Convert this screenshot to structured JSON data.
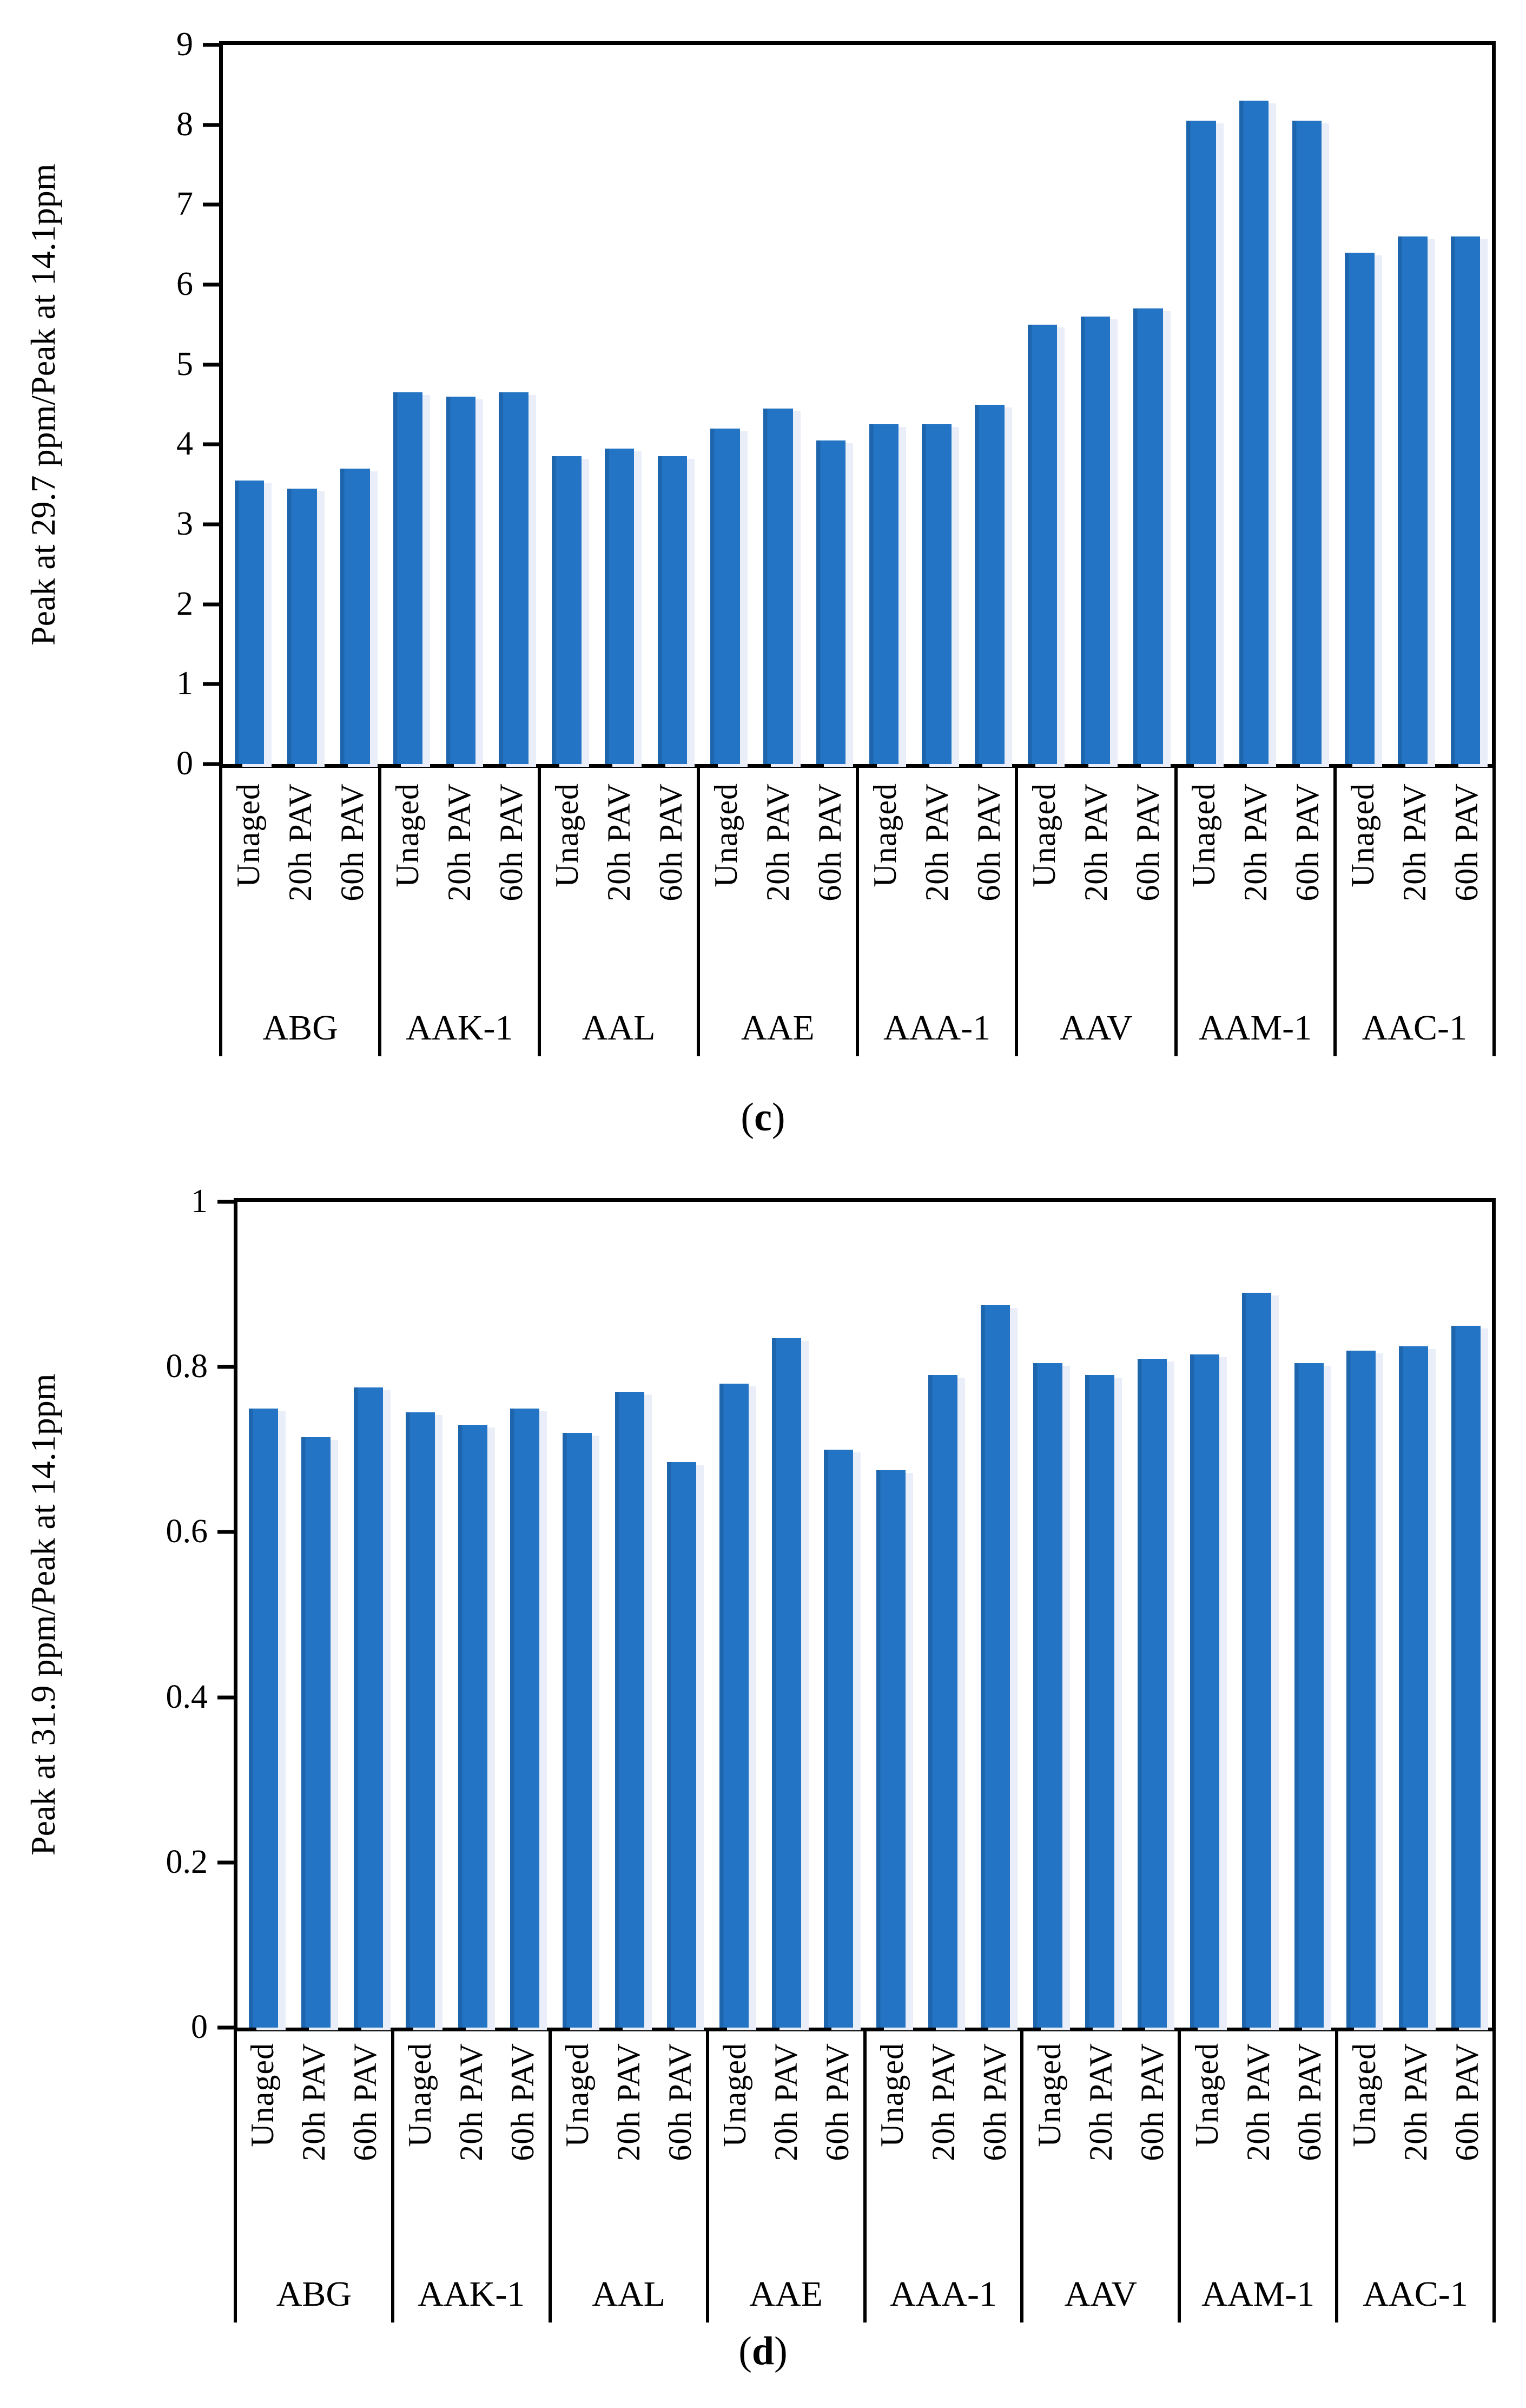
{
  "figure": {
    "background": "#ffffff",
    "bar_color": "#2374c4",
    "bar_edge_color": "#1d65ad",
    "bar_highlight_color": "#e9eef8",
    "axis_color": "#000000"
  },
  "chart_data": [
    {
      "type": "bar",
      "panel": "c",
      "title": "",
      "xlabel": "",
      "ylabel": "Peak at 29.7 ppm/Peak at 14.1ppm",
      "caption": {
        "open": "(",
        "letter": "c",
        "close": ")"
      },
      "ylim": [
        0,
        9
      ],
      "yticks": [
        9,
        8,
        7,
        6,
        5,
        4,
        3,
        2,
        1,
        0
      ],
      "ytick_labels": [
        "9",
        "8",
        "7",
        "6",
        "5",
        "4",
        "3",
        "2",
        "1",
        "0"
      ],
      "grid": "off",
      "legend": "none",
      "categories": [
        "ABG",
        "AAK-1",
        "AAL",
        "AAE",
        "AAA-1",
        "AAV",
        "AAM-1",
        "AAC-1"
      ],
      "aging_labels": [
        "Unaged",
        "20h PAV",
        "60h PAV"
      ],
      "values": [
        [
          3.55,
          3.45,
          3.7
        ],
        [
          4.65,
          4.6,
          4.65
        ],
        [
          3.85,
          3.95,
          3.85
        ],
        [
          4.2,
          4.45,
          4.05
        ],
        [
          4.25,
          4.25,
          4.5
        ],
        [
          5.5,
          5.6,
          5.7
        ],
        [
          8.05,
          8.3,
          8.05
        ],
        [
          6.4,
          6.6,
          6.6
        ]
      ]
    },
    {
      "type": "bar",
      "panel": "d",
      "title": "",
      "xlabel": "",
      "ylabel": "Peak at 31.9 ppm/Peak at 14.1ppm",
      "caption": {
        "open": "(",
        "letter": "d",
        "close": ")"
      },
      "ylim": [
        0,
        1
      ],
      "yticks": [
        1,
        0.8,
        0.6,
        0.4,
        0.2,
        0
      ],
      "ytick_labels": [
        "1",
        "0.8",
        "0.6",
        "0.4",
        "0.2",
        "0"
      ],
      "grid": "off",
      "legend": "none",
      "categories": [
        "ABG",
        "AAK-1",
        "AAL",
        "AAE",
        "AAA-1",
        "AAV",
        "AAM-1",
        "AAC-1"
      ],
      "aging_labels": [
        "Unaged",
        "20h PAV",
        "60h PAV"
      ],
      "values": [
        [
          0.75,
          0.715,
          0.775
        ],
        [
          0.745,
          0.73,
          0.75
        ],
        [
          0.72,
          0.77,
          0.685
        ],
        [
          0.78,
          0.835,
          0.7
        ],
        [
          0.675,
          0.79,
          0.875
        ],
        [
          0.805,
          0.79,
          0.81
        ],
        [
          0.815,
          0.89,
          0.805
        ],
        [
          0.82,
          0.825,
          0.85
        ]
      ]
    }
  ]
}
